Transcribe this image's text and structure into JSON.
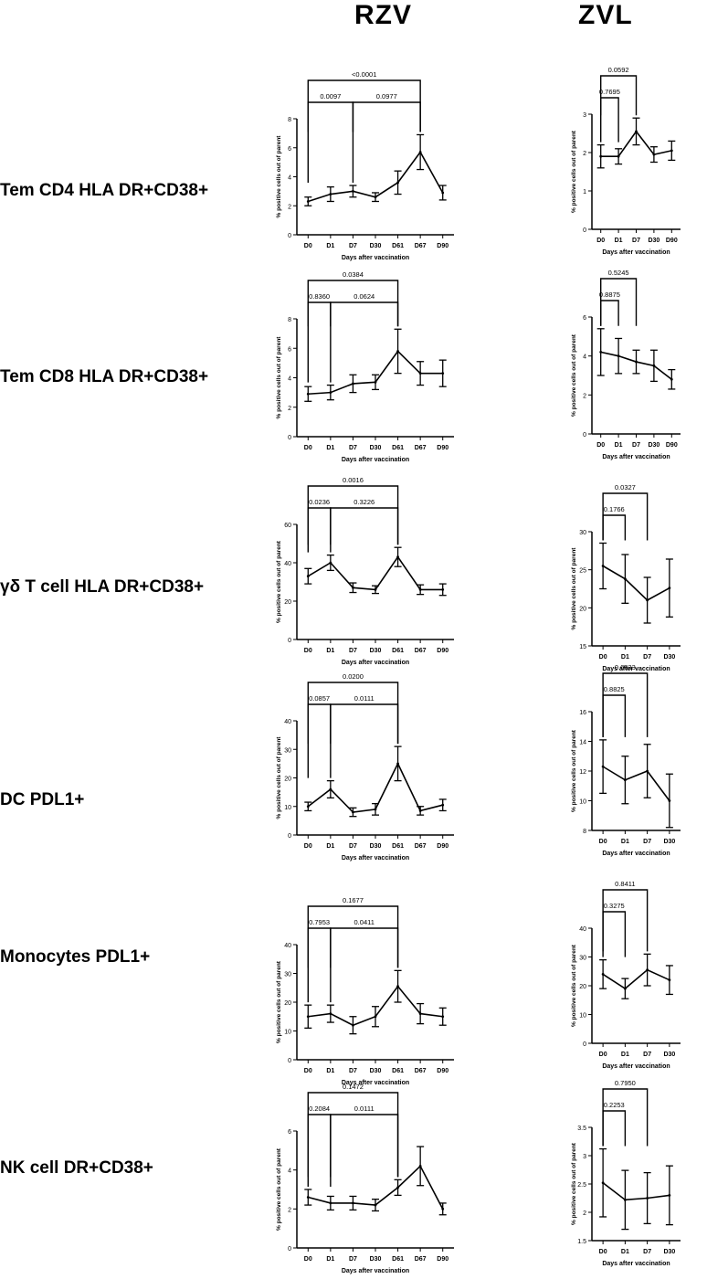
{
  "columns": {
    "rzv": "RZV",
    "zvl": "ZVL"
  },
  "rows": [
    "Tem CD4 HLA DR+CD38+",
    "Tem CD8 HLA DR+CD38+",
    "γδ T cell HLA DR+CD38+",
    "DC PDL1+",
    "Monocytes PDL1+",
    "NK cell DR+CD38+"
  ],
  "chart_data": [
    {
      "type": "line",
      "group": "RZV",
      "row": "Tem CD4 HLA DR+CD38+",
      "categories": [
        "D0",
        "D1",
        "D7",
        "D30",
        "D61",
        "D67",
        "D90"
      ],
      "series": [
        {
          "values": [
            2.3,
            2.8,
            3.0,
            2.6,
            3.6,
            5.7,
            2.9
          ],
          "error": [
            0.3,
            0.5,
            0.4,
            0.3,
            0.8,
            1.2,
            0.5
          ]
        }
      ],
      "ylim": [
        0,
        8
      ],
      "yticks": [
        0,
        2,
        4,
        6,
        8
      ],
      "xlabel": "Days after vaccination",
      "ylabel": "% positive cells out of parent",
      "annotations": [
        {
          "from": "D0",
          "to": "D7",
          "label": "0.0097"
        },
        {
          "from": "D7",
          "to": "D67",
          "label": "0.0977"
        },
        {
          "from": "D0",
          "to": "D67",
          "label": "<0.0001"
        }
      ]
    },
    {
      "type": "line",
      "group": "ZVL",
      "row": "Tem CD4 HLA DR+CD38+",
      "categories": [
        "D0",
        "D1",
        "D7",
        "D30",
        "D90"
      ],
      "series": [
        {
          "values": [
            1.9,
            1.9,
            2.55,
            1.95,
            2.05
          ],
          "error": [
            0.3,
            0.2,
            0.35,
            0.2,
            0.25
          ]
        }
      ],
      "ylim": [
        0,
        3
      ],
      "yticks": [
        0,
        1,
        2,
        3
      ],
      "xlabel": "Days after vaccination",
      "ylabel": "% positive cells out of parent",
      "annotations": [
        {
          "from": "D0",
          "to": "D1",
          "label": "0.7695"
        },
        {
          "from": "D0",
          "to": "D7",
          "label": "0.0592"
        }
      ]
    },
    {
      "type": "line",
      "group": "RZV",
      "row": "Tem CD8 HLA DR+CD38+",
      "categories": [
        "D0",
        "D1",
        "D7",
        "D30",
        "D61",
        "D67",
        "D90"
      ],
      "series": [
        {
          "values": [
            2.9,
            3.0,
            3.6,
            3.7,
            5.8,
            4.3,
            4.3
          ],
          "error": [
            0.5,
            0.5,
            0.6,
            0.5,
            1.5,
            0.8,
            0.9
          ]
        }
      ],
      "ylim": [
        0,
        8
      ],
      "yticks": [
        0,
        2,
        4,
        6,
        8
      ],
      "xlabel": "Days after vaccination",
      "ylabel": "% positive cells out of parent",
      "annotations": [
        {
          "from": "D0",
          "to": "D1",
          "label": "0.8360"
        },
        {
          "from": "D1",
          "to": "D61",
          "label": "0.0624"
        },
        {
          "from": "D0",
          "to": "D61",
          "label": "0.0384"
        }
      ]
    },
    {
      "type": "line",
      "group": "ZVL",
      "row": "Tem CD8 HLA DR+CD38+",
      "categories": [
        "D0",
        "D1",
        "D7",
        "D30",
        "D90"
      ],
      "series": [
        {
          "values": [
            4.2,
            4.0,
            3.7,
            3.5,
            2.8
          ],
          "error": [
            1.2,
            0.9,
            0.6,
            0.8,
            0.5
          ]
        }
      ],
      "ylim": [
        0,
        6
      ],
      "yticks": [
        0,
        2,
        4,
        6
      ],
      "xlabel": "Days after vaccination",
      "ylabel": "% positive cells out of parent",
      "annotations": [
        {
          "from": "D0",
          "to": "D1",
          "label": "0.8875"
        },
        {
          "from": "D0",
          "to": "D7",
          "label": "0.5245"
        }
      ]
    },
    {
      "type": "line",
      "group": "RZV",
      "row": "γδ T cell HLA DR+CD38+",
      "categories": [
        "D0",
        "D1",
        "D7",
        "D30",
        "D61",
        "D67",
        "D90"
      ],
      "series": [
        {
          "values": [
            33,
            40,
            27,
            26,
            43,
            26,
            26
          ],
          "error": [
            4,
            4,
            2.5,
            2,
            5,
            2.5,
            3
          ]
        }
      ],
      "ylim": [
        0,
        60
      ],
      "yticks": [
        0,
        20,
        40,
        60
      ],
      "xlabel": "Days after vaccination",
      "ylabel": "% positive cells out of parent",
      "annotations": [
        {
          "from": "D0",
          "to": "D1",
          "label": "0.0236"
        },
        {
          "from": "D1",
          "to": "D61",
          "label": "0.3226"
        },
        {
          "from": "D0",
          "to": "D61",
          "label": "0.0016"
        }
      ]
    },
    {
      "type": "line",
      "group": "ZVL",
      "row": "γδ T cell HLA DR+CD38+",
      "categories": [
        "D0",
        "D1",
        "D7",
        "D30"
      ],
      "series": [
        {
          "values": [
            25.5,
            23.8,
            21.0,
            22.6
          ],
          "error": [
            3.0,
            3.2,
            3.0,
            3.8
          ]
        }
      ],
      "ylim": [
        15,
        30
      ],
      "yticks": [
        15,
        20,
        25,
        30
      ],
      "xlabel": "Days after vaccination",
      "ylabel": "% positive cells out of parent",
      "annotations": [
        {
          "from": "D0",
          "to": "D1",
          "label": "0.1766"
        },
        {
          "from": "D0",
          "to": "D7",
          "label": "0.0327"
        }
      ]
    },
    {
      "type": "line",
      "group": "RZV",
      "row": "DC PDL1+",
      "categories": [
        "D0",
        "D1",
        "D7",
        "D30",
        "D61",
        "D67",
        "D90"
      ],
      "series": [
        {
          "values": [
            10,
            16,
            8,
            9,
            25,
            8.5,
            10.5
          ],
          "error": [
            1.5,
            3,
            1.5,
            2,
            6,
            1.5,
            2
          ]
        }
      ],
      "ylim": [
        0,
        40
      ],
      "yticks": [
        0,
        10,
        20,
        30,
        40
      ],
      "xlabel": "Days after vaccination",
      "ylabel": "% positive cells out of parent",
      "annotations": [
        {
          "from": "D0",
          "to": "D1",
          "label": "0.0857"
        },
        {
          "from": "D1",
          "to": "D61",
          "label": "0.0111"
        },
        {
          "from": "D0",
          "to": "D61",
          "label": "0.0200"
        }
      ]
    },
    {
      "type": "line",
      "group": "ZVL",
      "row": "DC PDL1+",
      "categories": [
        "D0",
        "D1",
        "D7",
        "D30"
      ],
      "series": [
        {
          "values": [
            12.3,
            11.4,
            12.0,
            10.0
          ],
          "error": [
            1.8,
            1.6,
            1.8,
            1.8
          ]
        }
      ],
      "ylim": [
        8,
        16
      ],
      "yticks": [
        8,
        10,
        12,
        14,
        16
      ],
      "xlabel": "Days after vaccination",
      "ylabel": "% positive cells out of parent",
      "annotations": [
        {
          "from": "D0",
          "to": "D1",
          "label": "0.8825"
        },
        {
          "from": "D0",
          "to": "D7",
          "label": "0.6033"
        }
      ]
    },
    {
      "type": "line",
      "group": "RZV",
      "row": "Monocytes PDL1+",
      "categories": [
        "D0",
        "D1",
        "D7",
        "D30",
        "D61",
        "D67",
        "D90"
      ],
      "series": [
        {
          "values": [
            15,
            16,
            12,
            15,
            25.5,
            16,
            15
          ],
          "error": [
            4,
            3,
            3,
            3.5,
            5.5,
            3.5,
            3
          ]
        }
      ],
      "ylim": [
        0,
        40
      ],
      "yticks": [
        0,
        10,
        20,
        30,
        40
      ],
      "xlabel": "Days after vaccination",
      "ylabel": "% positive cells out of parent",
      "annotations": [
        {
          "from": "D0",
          "to": "D1",
          "label": "0.7953"
        },
        {
          "from": "D1",
          "to": "D61",
          "label": "0.0411"
        },
        {
          "from": "D0",
          "to": "D61",
          "label": "0.1677"
        }
      ]
    },
    {
      "type": "line",
      "group": "ZVL",
      "row": "Monocytes PDL1+",
      "categories": [
        "D0",
        "D1",
        "D7",
        "D30"
      ],
      "series": [
        {
          "values": [
            24,
            19,
            25.5,
            22
          ],
          "error": [
            5,
            3.5,
            5.5,
            5
          ]
        }
      ],
      "ylim": [
        0,
        40
      ],
      "yticks": [
        0,
        10,
        20,
        30,
        40
      ],
      "xlabel": "Days after vaccination",
      "ylabel": "% positive cells out of parent",
      "annotations": [
        {
          "from": "D0",
          "to": "D1",
          "label": "0.3275"
        },
        {
          "from": "D0",
          "to": "D7",
          "label": "0.8411"
        }
      ]
    },
    {
      "type": "line",
      "group": "RZV",
      "row": "NK cell DR+CD38+",
      "categories": [
        "D0",
        "D1",
        "D7",
        "D30",
        "D61",
        "D67",
        "D90"
      ],
      "series": [
        {
          "values": [
            2.6,
            2.3,
            2.3,
            2.2,
            3.1,
            4.2,
            2.0
          ],
          "error": [
            0.4,
            0.35,
            0.35,
            0.3,
            0.4,
            1.0,
            0.3
          ]
        }
      ],
      "ylim": [
        0,
        6
      ],
      "yticks": [
        0,
        2,
        4,
        6
      ],
      "xlabel": "Days after vaccination",
      "ylabel": "% positive cells out of parent",
      "annotations": [
        {
          "from": "D0",
          "to": "D1",
          "label": "0.2084"
        },
        {
          "from": "D1",
          "to": "D61",
          "label": "0.0111"
        },
        {
          "from": "D0",
          "to": "D61",
          "label": "0.1472"
        }
      ]
    },
    {
      "type": "line",
      "group": "ZVL",
      "row": "NK cell DR+CD38+",
      "categories": [
        "D0",
        "D1",
        "D7",
        "D30"
      ],
      "series": [
        {
          "values": [
            2.52,
            2.22,
            2.25,
            2.3
          ],
          "error": [
            0.6,
            0.52,
            0.45,
            0.52
          ]
        }
      ],
      "ylim": [
        1.5,
        3.5
      ],
      "yticks": [
        1.5,
        2.0,
        2.5,
        3.0,
        3.5
      ],
      "xlabel": "Days after vaccination",
      "ylabel": "% positive cells out of parent",
      "annotations": [
        {
          "from": "D0",
          "to": "D1",
          "label": "0.2253"
        },
        {
          "from": "D0",
          "to": "D7",
          "label": "0.7950"
        }
      ]
    }
  ]
}
